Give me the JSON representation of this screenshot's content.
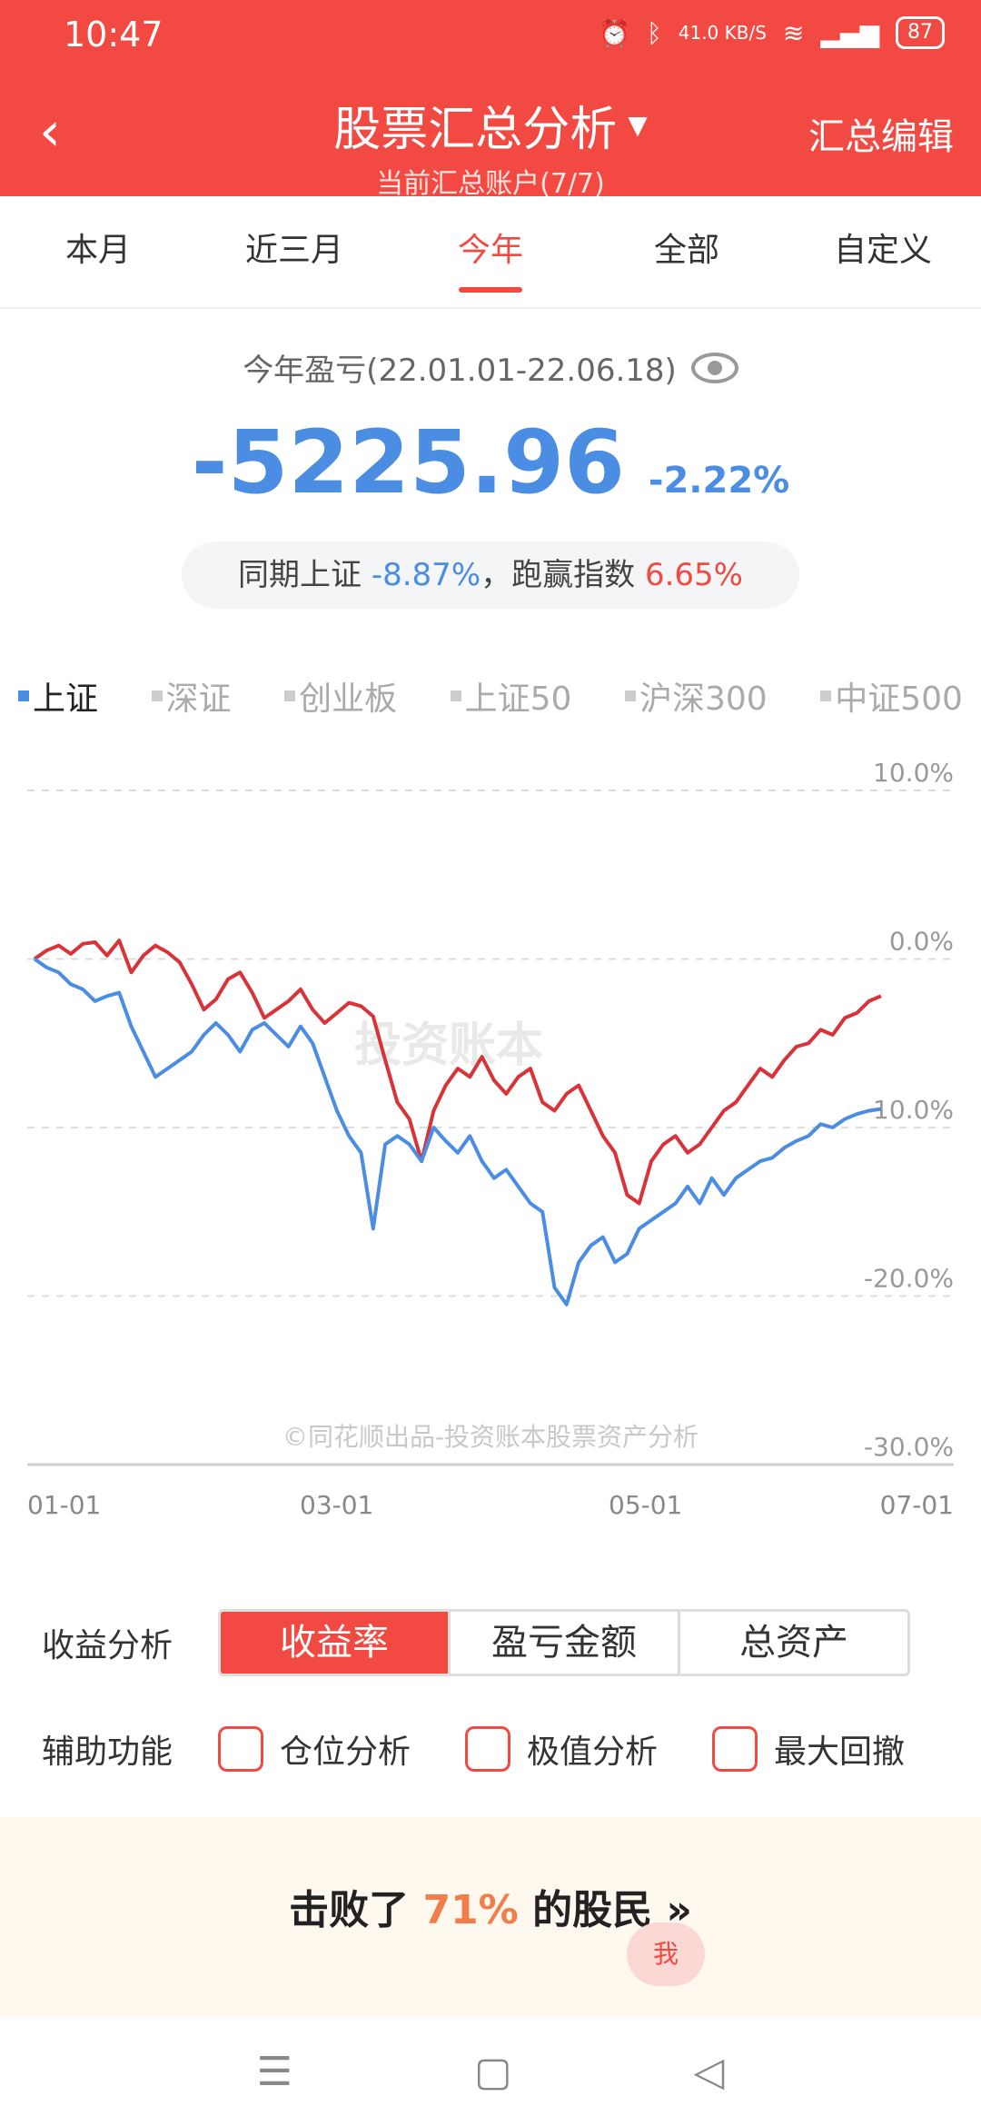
{
  "status": {
    "time": "10:47",
    "net_speed": "41.0 KB/S",
    "battery": "87"
  },
  "header": {
    "back_icon": "chevron-left-icon",
    "title": "股票汇总分析",
    "subtitle": "当前汇总账户(7/7)",
    "edit_label": "汇总编辑"
  },
  "tabs": [
    {
      "label": "本月"
    },
    {
      "label": "近三月"
    },
    {
      "label": "今年"
    },
    {
      "label": "全部"
    },
    {
      "label": "自定义"
    }
  ],
  "summary": {
    "label": "今年盈亏(22.01.01-22.06.18)",
    "amount": "-5225.96",
    "percent": "-2.22%",
    "compare_prefix": "同期上证",
    "compare_index": "-8.87%",
    "compare_mid": "，跑赢指数",
    "compare_outperf": "6.65%"
  },
  "indices": [
    {
      "label": "上证"
    },
    {
      "label": "深证"
    },
    {
      "label": "创业板"
    },
    {
      "label": "上证50"
    },
    {
      "label": "沪深300"
    },
    {
      "label": "中证500"
    }
  ],
  "watermark": "投资账本",
  "copyright": "©同花顺出品-投资账本股票资产分析",
  "chart_data": {
    "type": "line",
    "yticks": [
      "10.0%",
      "0.0%",
      "-10.0%",
      "-20.0%",
      "-30.0%"
    ],
    "ylim": [
      -30,
      10
    ],
    "xticks": [
      "01-01",
      "03-01",
      "05-01",
      "07-01"
    ],
    "series": [
      {
        "color": "#d9333a",
        "values": [
          0.0,
          0.5,
          0.8,
          0.3,
          0.9,
          1.0,
          0.2,
          1.1,
          -0.8,
          0.2,
          0.8,
          0.4,
          -0.2,
          -1.5,
          -3.0,
          -2.4,
          -1.2,
          -0.8,
          -2.0,
          -3.5,
          -3.0,
          -2.5,
          -1.8,
          -3.0,
          -3.8,
          -3.2,
          -2.6,
          -2.8,
          -3.4,
          -6.0,
          -8.5,
          -9.5,
          -12.0,
          -9.0,
          -7.5,
          -6.5,
          -7.0,
          -5.8,
          -7.2,
          -8.0,
          -7.0,
          -6.5,
          -8.5,
          -9.0,
          -8.0,
          -7.5,
          -9.0,
          -10.5,
          -11.5,
          -14.0,
          -14.5,
          -12.0,
          -11.0,
          -10.5,
          -11.5,
          -11.0,
          -10.0,
          -9.0,
          -8.5,
          -7.5,
          -6.5,
          -7.0,
          -6.0,
          -5.2,
          -5.0,
          -4.2,
          -4.5,
          -3.5,
          -3.2,
          -2.5,
          -2.2
        ]
      },
      {
        "color": "#4a8de2",
        "values": [
          0.0,
          -0.5,
          -0.8,
          -1.5,
          -1.8,
          -2.5,
          -2.2,
          -2.0,
          -4.0,
          -5.5,
          -7.0,
          -6.5,
          -6.0,
          -5.5,
          -4.5,
          -3.8,
          -4.5,
          -5.5,
          -4.2,
          -3.8,
          -4.5,
          -5.2,
          -4.0,
          -5.0,
          -7.0,
          -9.0,
          -10.5,
          -11.5,
          -16.0,
          -11.0,
          -10.5,
          -11.0,
          -12.0,
          -10.0,
          -10.8,
          -11.5,
          -10.5,
          -12.0,
          -13.0,
          -12.5,
          -13.5,
          -14.5,
          -15.0,
          -19.5,
          -20.5,
          -18.0,
          -17.0,
          -16.5,
          -18.0,
          -17.5,
          -16.0,
          -15.5,
          -15.0,
          -14.5,
          -13.5,
          -14.5,
          -13.0,
          -14.0,
          -13.0,
          -12.5,
          -12.0,
          -11.8,
          -11.2,
          -10.8,
          -10.5,
          -9.8,
          -10.0,
          -9.5,
          -9.2,
          -9.0,
          -8.9
        ]
      }
    ]
  },
  "analysis": {
    "label": "收益分析",
    "options": [
      {
        "label": "收益率"
      },
      {
        "label": "盈亏金额"
      },
      {
        "label": "总资产"
      }
    ]
  },
  "aux": {
    "label": "辅助功能",
    "options": [
      {
        "label": "仓位分析"
      },
      {
        "label": "极值分析"
      },
      {
        "label": "最大回撤"
      }
    ]
  },
  "beat": {
    "prefix": "击败了",
    "percent": "71%",
    "suffix": "的股民",
    "arrow": "»"
  },
  "me_label": "我"
}
